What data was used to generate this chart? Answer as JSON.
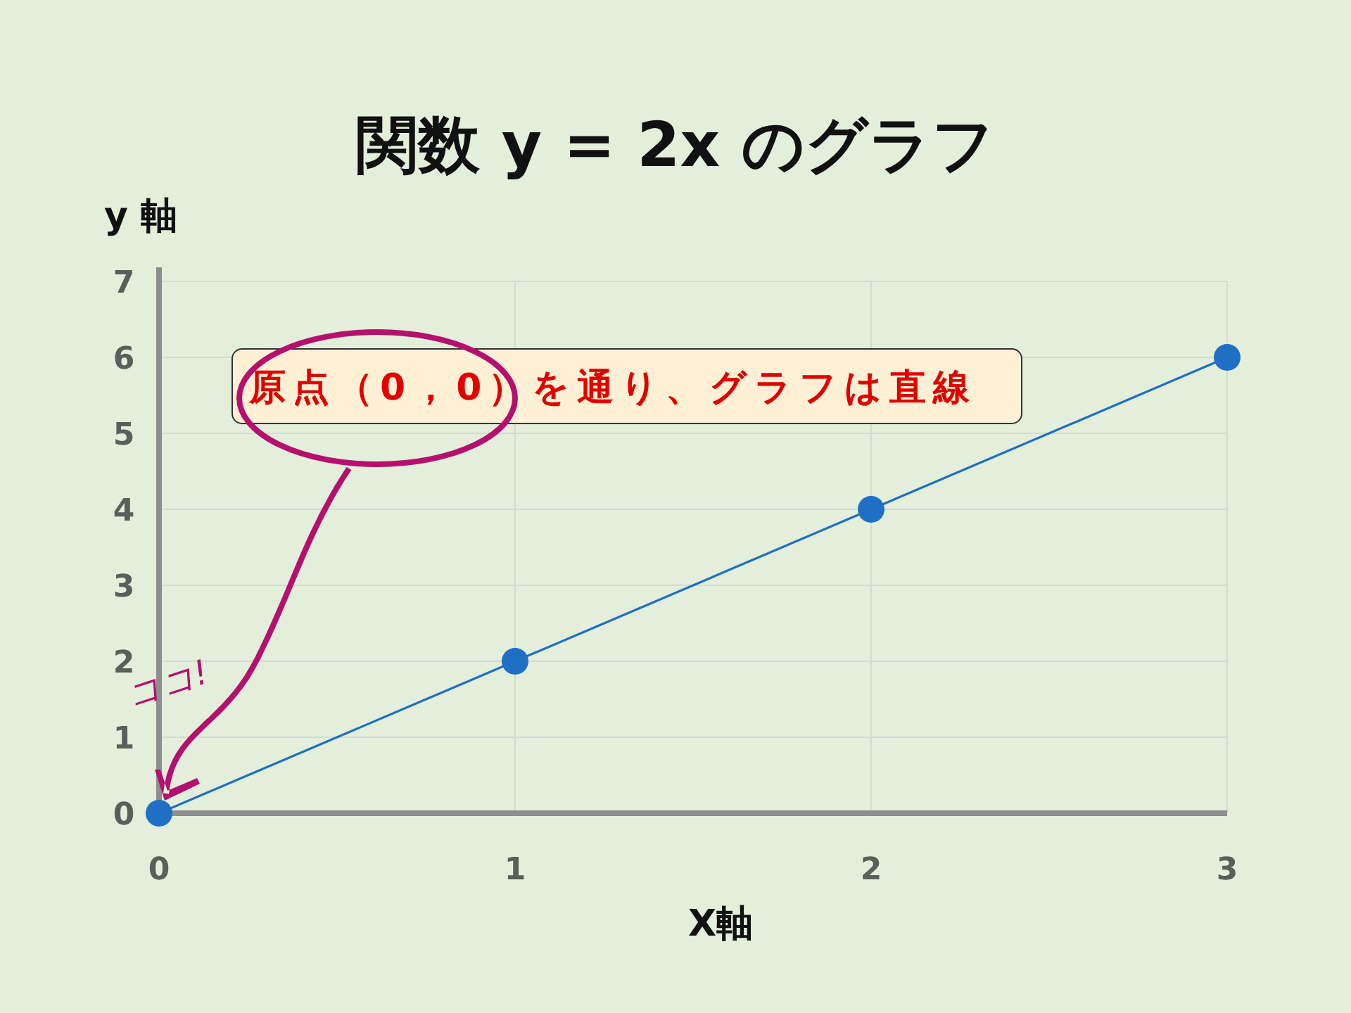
{
  "chart_data": {
    "type": "line",
    "title": "関数 y = 2x  のグラフ",
    "xlabel": "X軸",
    "ylabel": "y 軸",
    "x": [
      0,
      1,
      2,
      3
    ],
    "series": [
      {
        "color": "#1f6fc5",
        "values": [
          0,
          2,
          4,
          6
        ]
      }
    ],
    "xlim": [
      0,
      3
    ],
    "ylim": [
      0,
      7
    ],
    "xticks": [
      0,
      1,
      2,
      3
    ],
    "yticks": [
      0,
      1,
      2,
      3,
      4,
      5,
      6,
      7
    ],
    "grid": true,
    "marker": "circle",
    "annotations": [
      "原点（0，0）を通り、グラフは直線",
      {
        "text": "ココ!",
        "x": 0,
        "y": 0
      }
    ]
  }
}
